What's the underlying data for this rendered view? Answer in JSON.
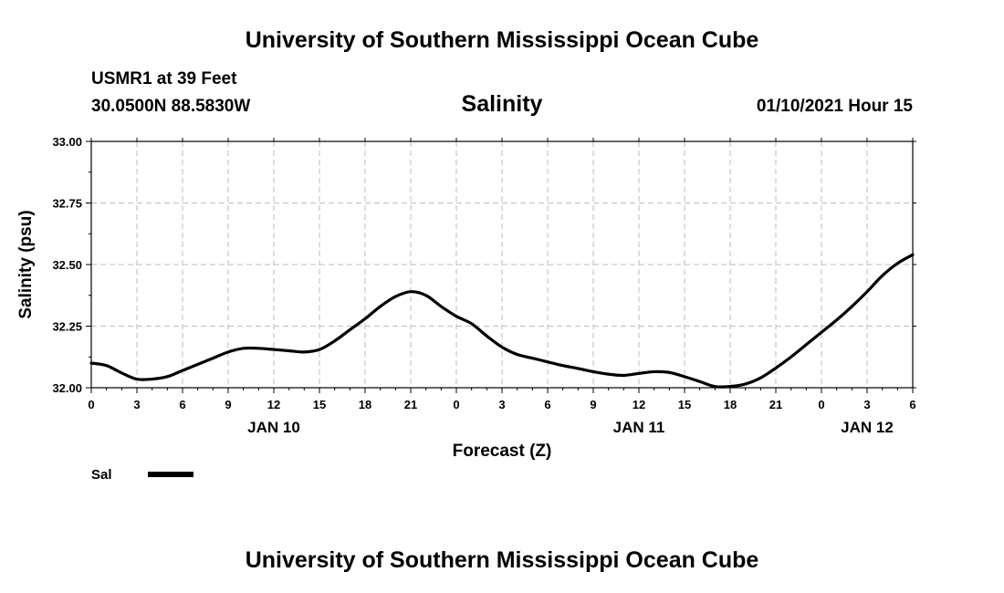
{
  "header": {
    "title_top": "University of Southern Mississippi Ocean Cube",
    "station": "USMR1 at 39 Feet",
    "coords": "30.0500N 88.5830W",
    "datetime": "01/10/2021 Hour 15",
    "title_bottom": "University of Southern Mississippi Ocean Cube"
  },
  "chart_data": {
    "type": "line",
    "title": "Salinity",
    "xlabel": "Forecast (Z)",
    "ylabel": "Salinity (psu)",
    "ylim": [
      32.0,
      33.0
    ],
    "yticks": [
      "32.00",
      "32.25",
      "32.50",
      "32.75",
      "33.00"
    ],
    "xlim": [
      0,
      54
    ],
    "xtick_labels": [
      "0",
      "3",
      "6",
      "9",
      "12",
      "15",
      "18",
      "21",
      "0",
      "3",
      "6",
      "9",
      "12",
      "15",
      "18",
      "21",
      "0",
      "3",
      "6"
    ],
    "date_labels": [
      {
        "text": "JAN 10",
        "hour": 12
      },
      {
        "text": "JAN 11",
        "hour": 36
      },
      {
        "text": "JAN 12",
        "hour": 51
      }
    ],
    "grid": true,
    "legend_position": "bottom-left",
    "series": [
      {
        "name": "Sal",
        "color": "#000000",
        "x": [
          0,
          1,
          2,
          3,
          4,
          5,
          6,
          7,
          8,
          9,
          10,
          11,
          12,
          13,
          14,
          15,
          16,
          17,
          18,
          19,
          20,
          21,
          22,
          23,
          24,
          25,
          26,
          27,
          28,
          29,
          30,
          31,
          32,
          33,
          34,
          35,
          36,
          37,
          38,
          39,
          40,
          41,
          42,
          43,
          44,
          45,
          46,
          47,
          48,
          49,
          50,
          51,
          52,
          53,
          54
        ],
        "values": [
          32.1,
          32.09,
          32.06,
          32.035,
          32.035,
          32.045,
          32.07,
          32.095,
          32.12,
          32.145,
          32.16,
          32.16,
          32.155,
          32.15,
          32.145,
          32.155,
          32.19,
          32.235,
          32.28,
          32.33,
          32.37,
          32.39,
          32.375,
          32.33,
          32.29,
          32.26,
          32.21,
          32.165,
          32.135,
          32.12,
          32.105,
          32.09,
          32.078,
          32.065,
          32.055,
          32.05,
          32.058,
          32.065,
          32.062,
          32.045,
          32.025,
          32.005,
          32.005,
          32.015,
          32.04,
          32.08,
          32.125,
          32.175,
          32.225,
          32.275,
          32.33,
          32.39,
          32.455,
          32.505,
          32.54
        ]
      }
    ]
  }
}
